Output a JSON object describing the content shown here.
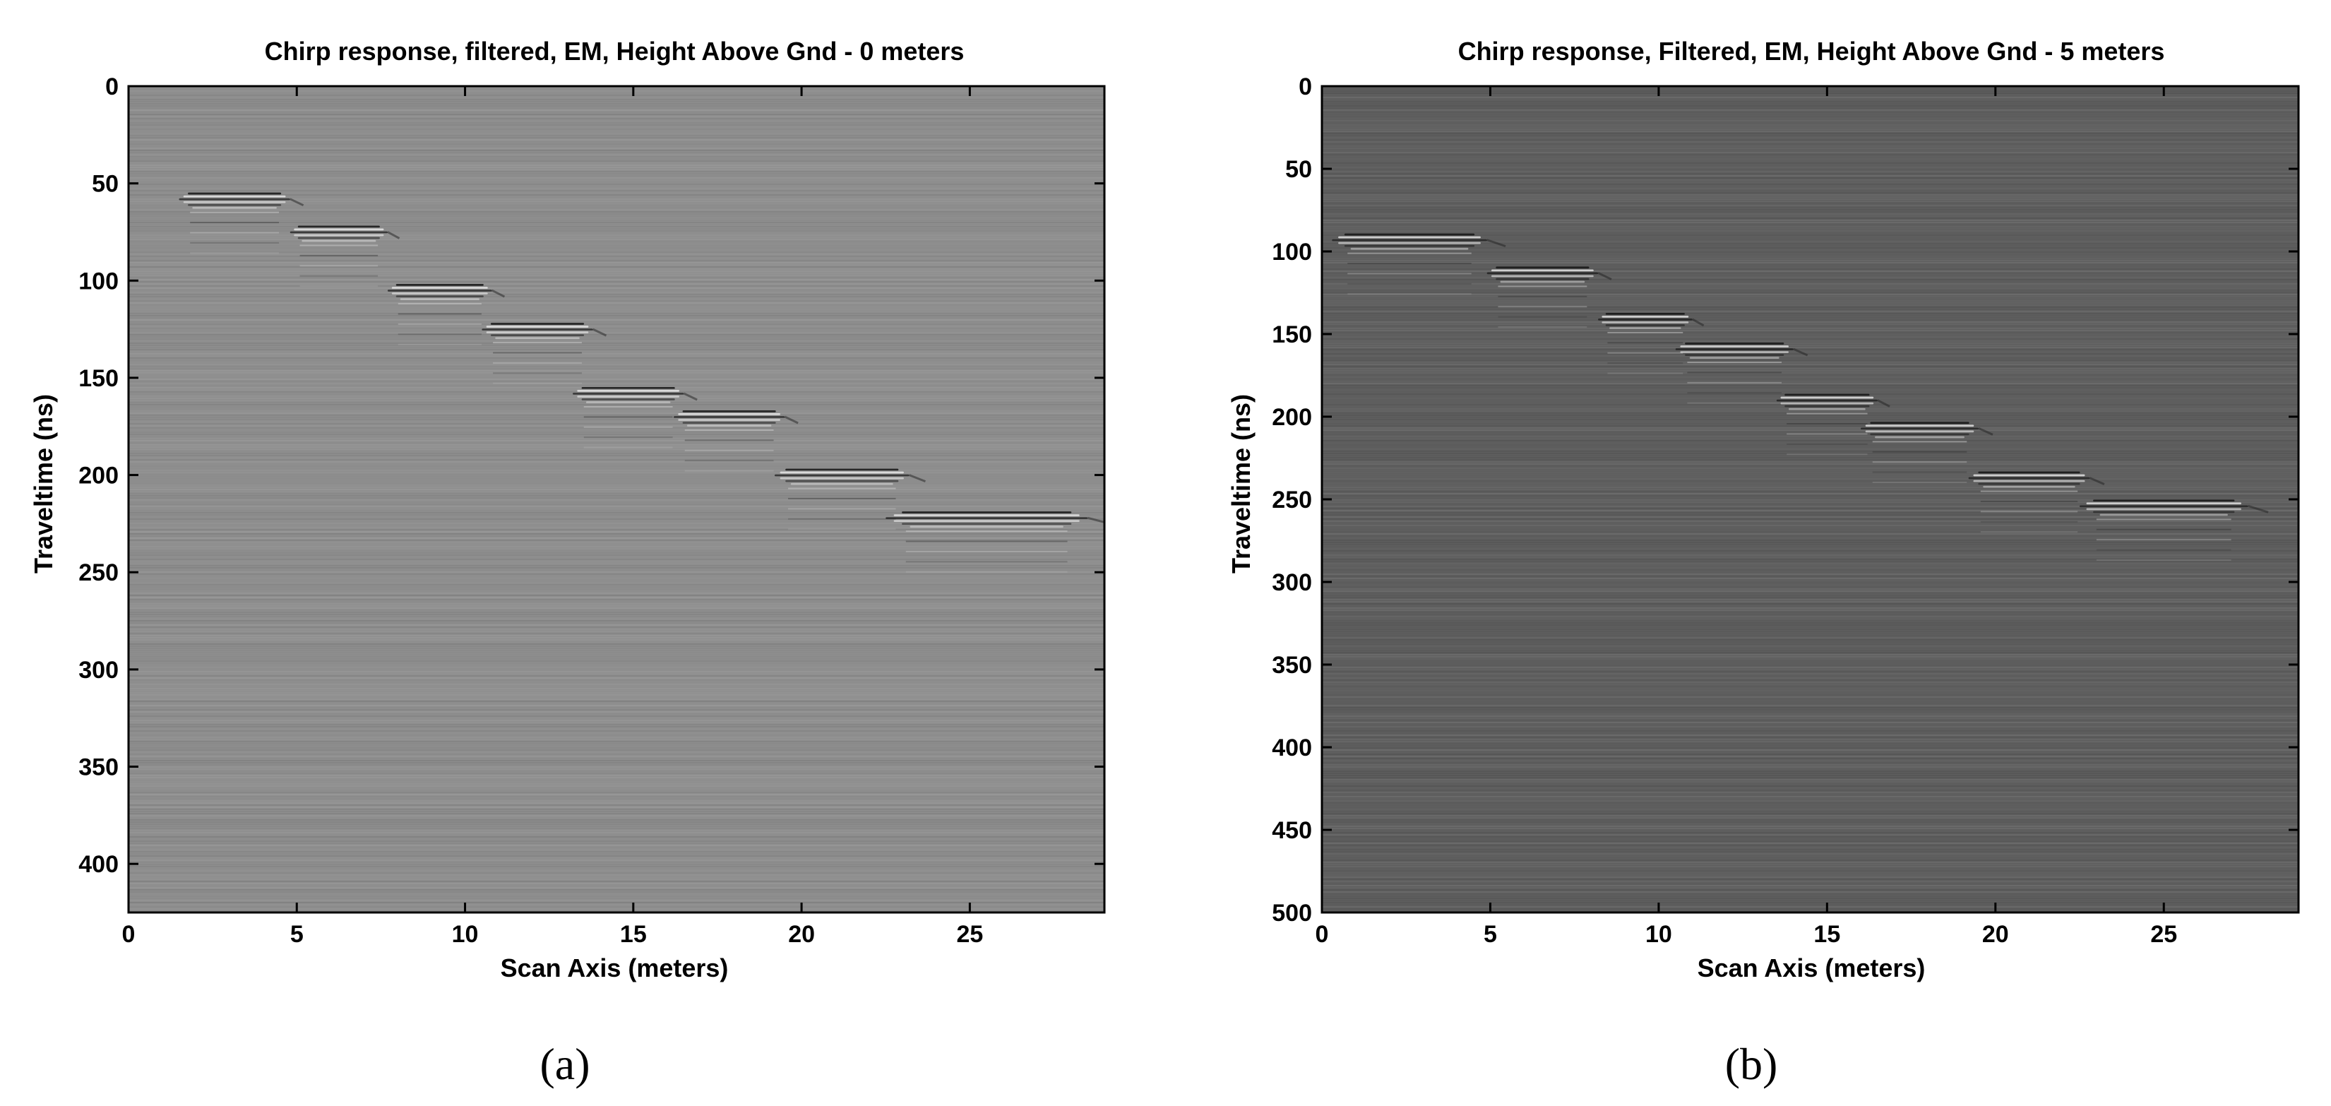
{
  "chart_data": [
    {
      "type": "heatmap",
      "panel_label": "(a)",
      "title": "Chirp response, filtered, EM, Height Above Gnd - 0 meters",
      "xlabel": "Scan Axis (meters)",
      "ylabel": "Traveltime (ns)",
      "xlim": [
        0,
        29
      ],
      "ylim": [
        425,
        0
      ],
      "x_ticks": [
        0,
        5,
        10,
        15,
        20,
        25
      ],
      "y_ticks": [
        0,
        50,
        100,
        150,
        200,
        250,
        300,
        350,
        400
      ],
      "background_color": "#8e8e8e",
      "colormap": "gray",
      "reflections": [
        {
          "x_start": 1.5,
          "x_end": 4.8,
          "t": 58
        },
        {
          "x_start": 4.8,
          "x_end": 7.7,
          "t": 75
        },
        {
          "x_start": 7.7,
          "x_end": 10.8,
          "t": 105
        },
        {
          "x_start": 10.5,
          "x_end": 13.8,
          "t": 125
        },
        {
          "x_start": 13.2,
          "x_end": 16.5,
          "t": 158
        },
        {
          "x_start": 16.2,
          "x_end": 19.5,
          "t": 170
        },
        {
          "x_start": 19.2,
          "x_end": 23.2,
          "t": 200
        },
        {
          "x_start": 22.5,
          "x_end": 28.5,
          "t": 222
        }
      ]
    },
    {
      "type": "heatmap",
      "panel_label": "(b)",
      "title": "Chirp response, Filtered, EM,  Height Above Gnd - 5 meters",
      "xlabel": "Scan Axis (meters)",
      "ylabel": "Traveltime (ns)",
      "xlim": [
        0,
        29
      ],
      "ylim": [
        500,
        0
      ],
      "x_ticks": [
        0,
        5,
        10,
        15,
        20,
        25
      ],
      "y_ticks": [
        0,
        50,
        100,
        150,
        200,
        250,
        300,
        350,
        400,
        450,
        500
      ],
      "background_color": "#5e5e5e",
      "colormap": "gray",
      "reflections": [
        {
          "x_start": 0.3,
          "x_end": 4.9,
          "t": 93
        },
        {
          "x_start": 4.9,
          "x_end": 8.2,
          "t": 113
        },
        {
          "x_start": 8.2,
          "x_end": 11.0,
          "t": 141
        },
        {
          "x_start": 10.5,
          "x_end": 14.0,
          "t": 159
        },
        {
          "x_start": 13.5,
          "x_end": 16.5,
          "t": 190
        },
        {
          "x_start": 16.0,
          "x_end": 19.5,
          "t": 207
        },
        {
          "x_start": 19.2,
          "x_end": 22.8,
          "t": 237
        },
        {
          "x_start": 22.5,
          "x_end": 27.5,
          "t": 254
        }
      ]
    }
  ]
}
